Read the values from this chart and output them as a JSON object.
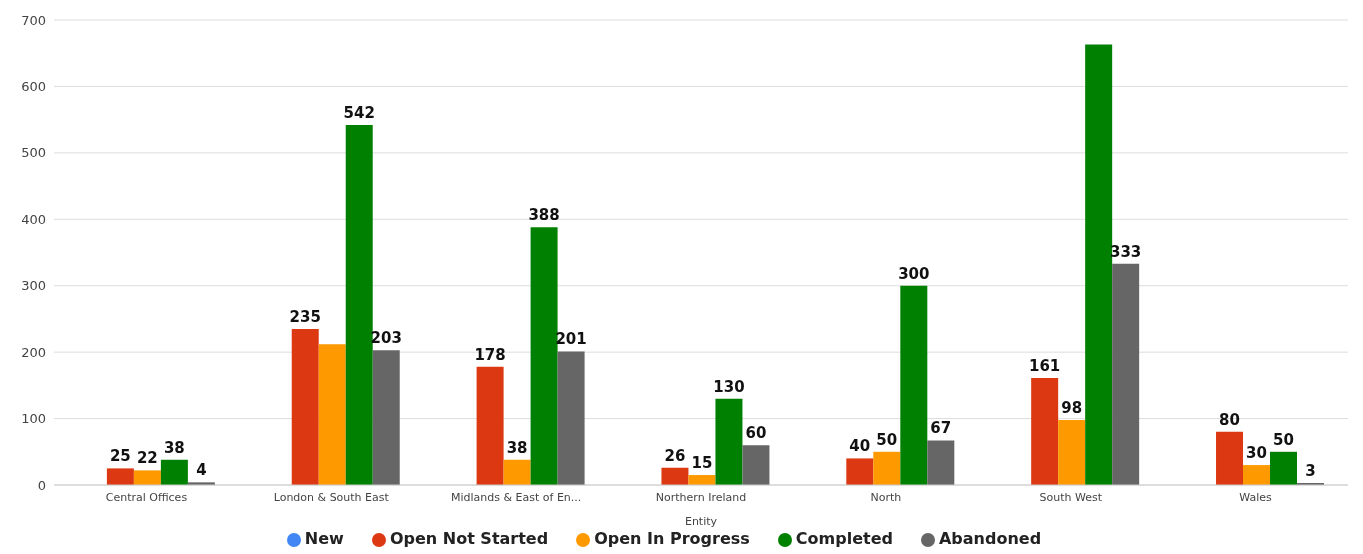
{
  "chart_data": {
    "type": "bar",
    "xlabel": "Entity",
    "categories": [
      "Central Offices",
      "London & South East",
      "Midlands & East of En...",
      "Northern Ireland",
      "North",
      "South West",
      "Wales"
    ],
    "series": [
      {
        "name": "New",
        "color": "#4285f4",
        "values": [
          null,
          null,
          null,
          null,
          null,
          null,
          null
        ]
      },
      {
        "name": "Open Not Started",
        "color": "#dc3912",
        "values": [
          25,
          235,
          178,
          26,
          40,
          161,
          80
        ],
        "value_labels": [
          "25",
          "235",
          "178",
          "26",
          "40",
          "161",
          "80"
        ]
      },
      {
        "name": "Open In Progress",
        "color": "#ff9900",
        "values": [
          22,
          212,
          38,
          15,
          50,
          98,
          30
        ],
        "value_labels": [
          "22",
          null,
          "38",
          "15",
          "50",
          "98",
          "30"
        ]
      },
      {
        "name": "Completed",
        "color": "#008000",
        "values": [
          38,
          542,
          388,
          130,
          300,
          663,
          50
        ],
        "value_labels": [
          "38",
          "542",
          "388",
          "130",
          "300",
          null,
          "50"
        ]
      },
      {
        "name": "Abandoned",
        "color": "#666666",
        "values": [
          4,
          203,
          201,
          60,
          67,
          333,
          3
        ],
        "value_labels": [
          "4",
          "203",
          "201",
          "60",
          "67",
          "333",
          "3"
        ]
      }
    ],
    "ylim": [
      0,
      700
    ],
    "yticks": [
      0,
      100,
      200,
      300,
      400,
      500,
      600,
      700
    ],
    "grid": "y",
    "legend": "bottom"
  }
}
